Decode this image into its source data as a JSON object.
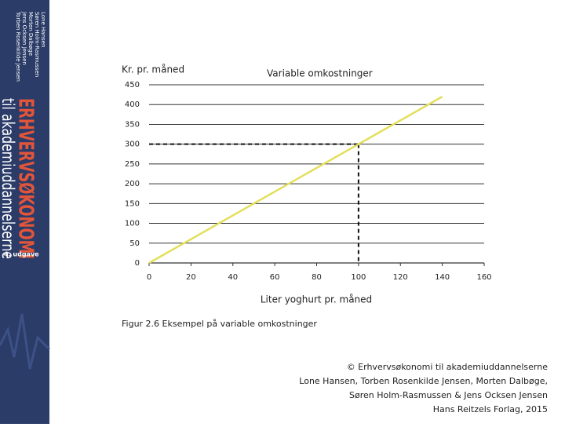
{
  "cover": {
    "authors": [
      "Lone Hansen",
      "Søren Holm-Rasmussen",
      "Morten Dalbøge",
      "Jens Ocksen Jensen",
      "Torben Rosenkilde Jensen"
    ],
    "title": "ERHVERVSØKONOMI",
    "subtitle": "til akademiuddannelserne",
    "edition": "4. udgave"
  },
  "chart_data": {
    "type": "line",
    "title": "Variable omkostninger",
    "y_label": "Kr. pr. måned",
    "x_label": "Liter yoghurt pr. måned",
    "x": [
      0,
      140
    ],
    "series": [
      {
        "values": [
          0,
          420
        ],
        "color": "#e3df5c"
      }
    ],
    "xlim": [
      0,
      160
    ],
    "xticks": [
      0,
      20,
      40,
      60,
      80,
      100,
      120,
      140,
      160
    ],
    "ylim": [
      0,
      450
    ],
    "yticks": [
      0,
      50,
      100,
      150,
      200,
      250,
      300,
      350,
      400,
      450
    ],
    "grid": true,
    "reference": {
      "x": 100,
      "y": 300
    }
  },
  "caption": "Figur 2.6  Eksempel på variable omkostninger",
  "copyright": [
    "© Erhvervsøkonomi til akademiuddannelserne",
    "Lone Hansen, Torben Rosenkilde Jensen, Morten Dalbøge,",
    "Søren Holm-Rasmussen & Jens Ocksen Jensen",
    "Hans Reitzels Forlag, 2015"
  ]
}
